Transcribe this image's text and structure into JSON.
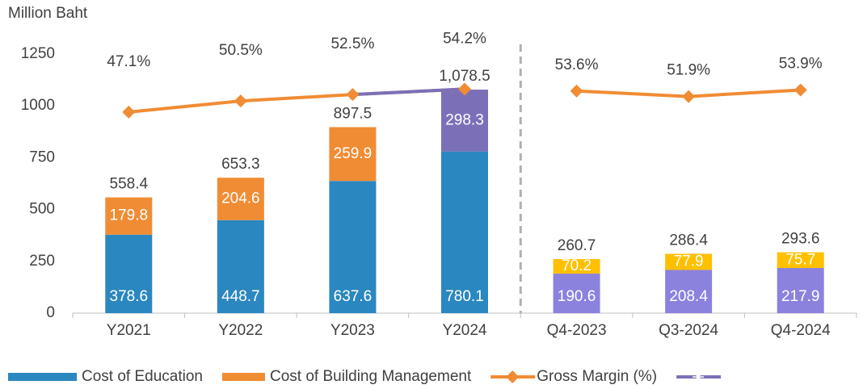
{
  "chart_data": {
    "type": "bar",
    "stacked": true,
    "y_label": "Million Baht",
    "categories": [
      "Y2021",
      "Y2022",
      "Y2023",
      "Y2024",
      "Q4-2023",
      "Q3-2024",
      "Q4-2024"
    ],
    "group_sizes": [
      4,
      3
    ],
    "ylim": [
      0,
      1250
    ],
    "yticks": [
      0,
      250,
      500,
      750,
      1000,
      1250
    ],
    "y2lim": [
      -15,
      65
    ],
    "series": [
      {
        "name": "Cost of Education",
        "color": "#2b87bf",
        "colors": [
          "#2b87bf",
          "#2b87bf",
          "#2b87bf",
          "#2b87bf",
          "#8b82dd",
          "#8b82dd",
          "#8b82dd"
        ],
        "values": [
          378.6,
          448.7,
          637.6,
          780.1,
          190.6,
          208.4,
          217.9
        ]
      },
      {
        "name": "Cost of Building Management",
        "color": "#f08c34",
        "colors": [
          "#f08c34",
          "#f08c34",
          "#f08c34",
          "#7b70b8",
          "#ffc000",
          "#ffc000",
          "#ffc000"
        ],
        "values": [
          179.8,
          204.6,
          259.9,
          298.3,
          70.2,
          77.9,
          75.7
        ]
      },
      {
        "name": "Gross Margin (%)",
        "type": "line",
        "axis": "y2",
        "color": "#f08c34",
        "marker": "diamond",
        "values": [
          47.1,
          50.5,
          52.5,
          54.2,
          53.6,
          51.9,
          53.9
        ],
        "value_labels": [
          "47.1%",
          "50.5%",
          "52.5%",
          "54.2%",
          "53.6%",
          "51.9%",
          "53.9%"
        ]
      },
      {
        "type": "line",
        "axis": "y2",
        "color": "#7b70b8",
        "marker": "asterisk",
        "values": [
          null,
          null,
          52.5,
          54.2,
          null,
          null,
          null
        ]
      }
    ],
    "totals": {
      "values": [
        558.4,
        653.3,
        897.5,
        1078.5,
        260.7,
        286.4,
        293.6
      ],
      "value_labels": [
        "558.4",
        "653.3",
        "897.5",
        "1,078.5",
        "260.7",
        "286.4",
        "293.6"
      ]
    }
  }
}
